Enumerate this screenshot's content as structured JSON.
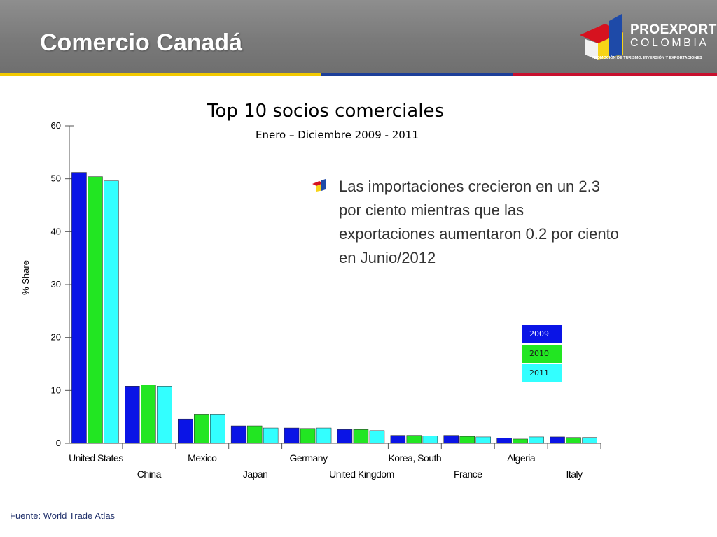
{
  "header": {
    "title": "Comercio Canadá",
    "logo_brand": "PROEXPORT",
    "logo_sub": "COLOMBIA",
    "logo_tagline": "PROMOCIÓN DE TURISMO, INVERSIÓN Y EXPORTACIONES"
  },
  "colors": {
    "header_bg": "#7f7f7f",
    "stripe_yellow": "#f2c900",
    "stripe_blue": "#1d3f99",
    "stripe_red": "#c8102e"
  },
  "bullet": {
    "text": "Las importaciones crecieron en un 2.3 por ciento mientras que las exportaciones aumentaron 0.2 por ciento en Junio/2012",
    "icon": "proexport-cube-icon"
  },
  "source": "Fuente: World Trade Atlas",
  "chart_data": {
    "type": "bar",
    "title": "Top 10 socios comerciales",
    "subtitle": "Enero – Diciembre 2009 - 2011",
    "xlabel": "",
    "ylabel": "% Share",
    "ylim": [
      0,
      60
    ],
    "yticks": [
      0,
      10,
      20,
      30,
      40,
      50,
      60
    ],
    "grid": false,
    "legend_position": "right",
    "categories": [
      "United States",
      "China",
      "Mexico",
      "Japan",
      "Germany",
      "United Kingdom",
      "Korea, South",
      "France",
      "Algeria",
      "Italy"
    ],
    "series": [
      {
        "name": "2009",
        "color": "#0a14e6",
        "values": [
          51.2,
          10.8,
          4.6,
          3.3,
          2.9,
          2.6,
          1.5,
          1.5,
          1.0,
          1.2
        ]
      },
      {
        "name": "2010",
        "color": "#22e622",
        "values": [
          50.4,
          11.0,
          5.5,
          3.3,
          2.8,
          2.6,
          1.5,
          1.3,
          0.8,
          1.1
        ]
      },
      {
        "name": "2011",
        "color": "#33ffff",
        "values": [
          49.6,
          10.8,
          5.5,
          2.9,
          2.9,
          2.4,
          1.4,
          1.2,
          1.2,
          1.1
        ]
      }
    ]
  }
}
